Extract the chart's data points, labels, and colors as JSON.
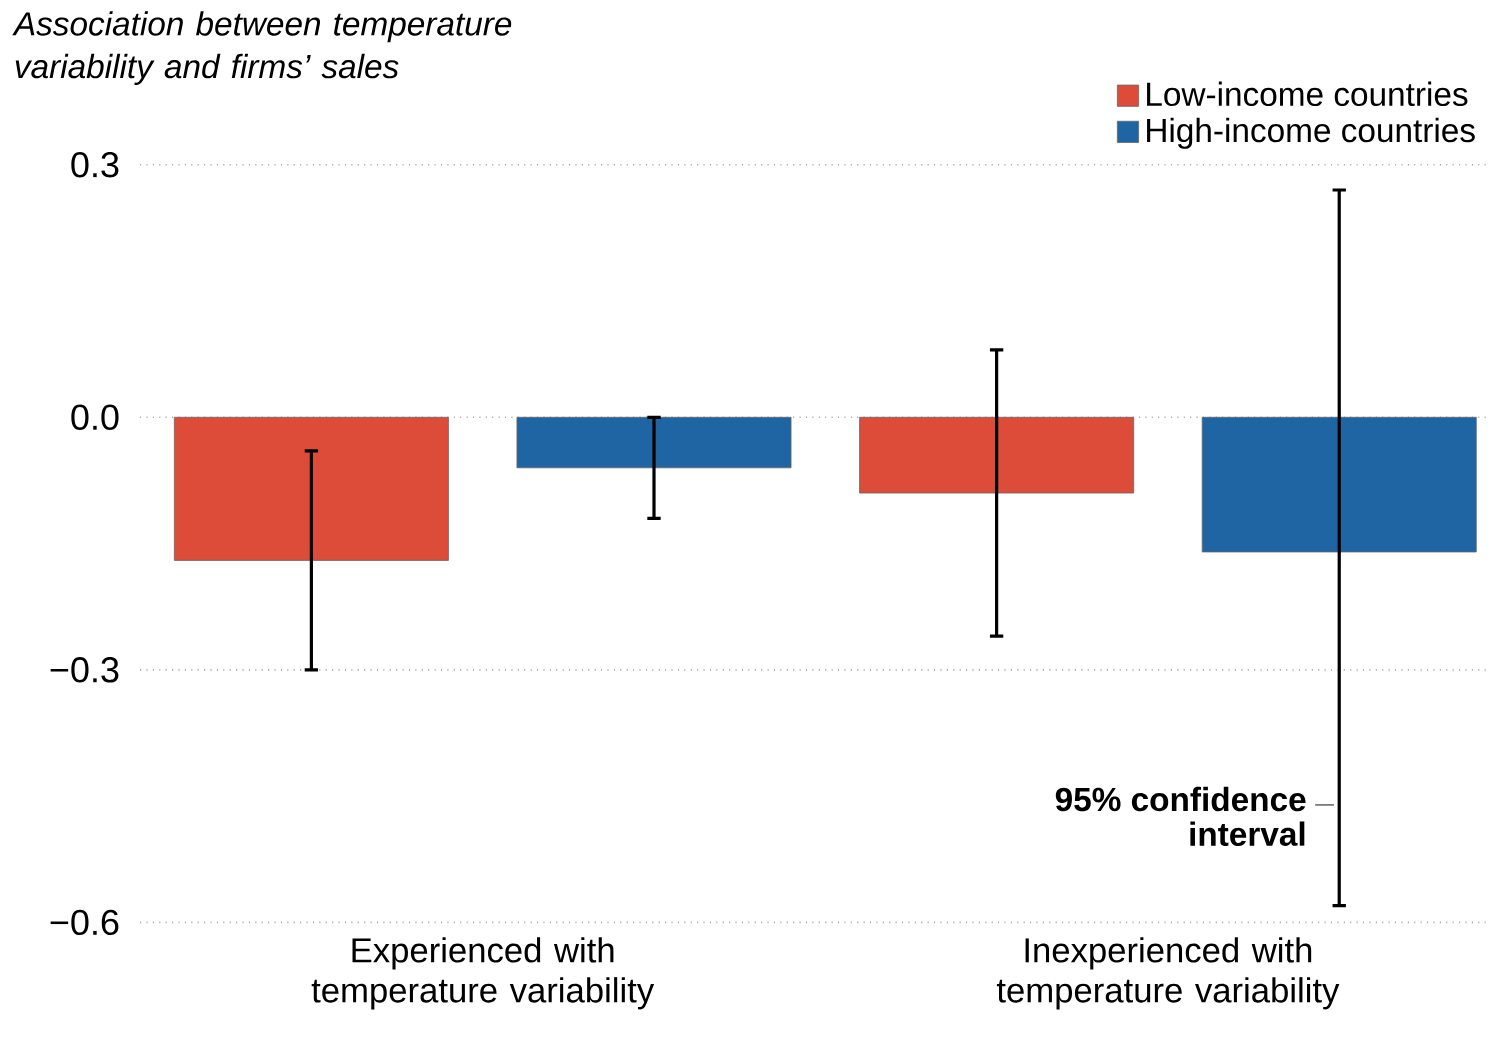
{
  "chart_data": {
    "type": "bar",
    "title": "Association between temperature variability and firms’ sales",
    "categories": [
      "Experienced with temperature variability",
      "Inexperienced with temperature variability"
    ],
    "series": [
      {
        "name": "Low-income countries",
        "color": "#dd4b39",
        "values": [
          -0.17,
          -0.09
        ],
        "errors": [
          [
            -0.3,
            -0.04
          ],
          [
            -0.26,
            0.08
          ]
        ]
      },
      {
        "name": "High-income countries",
        "color": "#1f64a3",
        "values": [
          -0.06,
          -0.16
        ],
        "errors": [
          [
            -0.12,
            0.0
          ],
          [
            -0.58,
            0.27
          ]
        ]
      }
    ],
    "ylim": [
      -0.6,
      0.3
    ],
    "yticks": [
      {
        "value": -0.6,
        "label": "−0.6"
      },
      {
        "value": -0.3,
        "label": "−0.3"
      },
      {
        "value": 0.0,
        "label": "0.0"
      },
      {
        "value": 0.3,
        "label": "0.3"
      }
    ],
    "grid": "y",
    "legend": "top right",
    "annotations": [
      "95% confidence interval"
    ]
  }
}
